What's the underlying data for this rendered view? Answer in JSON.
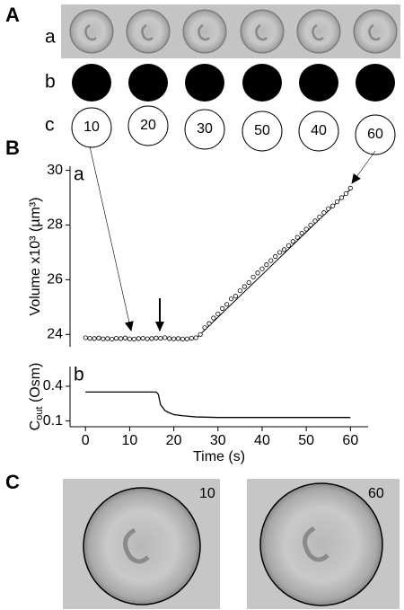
{
  "panel_a": {
    "label": "A",
    "rows": [
      "a",
      "b",
      "c"
    ],
    "times": [
      "10",
      "20",
      "30",
      "50",
      "40",
      "60"
    ]
  },
  "panel_b": {
    "label": "B"
  },
  "panel_c": {
    "label": "C",
    "images": [
      "10",
      "60"
    ]
  },
  "chart_data": [
    {
      "type": "scatter",
      "panel_label": "a",
      "ylabel": "Volume x10³ (µm³)",
      "x": [
        0,
        1,
        2,
        3,
        4,
        5,
        6,
        7,
        8,
        9,
        10,
        11,
        12,
        13,
        14,
        15,
        16,
        17,
        18,
        19,
        20,
        21,
        22,
        23,
        24,
        25,
        26,
        27,
        28,
        29,
        30,
        31,
        32,
        33,
        34,
        35,
        36,
        37,
        38,
        39,
        40,
        41,
        42,
        43,
        44,
        45,
        46,
        47,
        48,
        49,
        50,
        51,
        52,
        53,
        54,
        55,
        56,
        57,
        58,
        59,
        60
      ],
      "values": [
        23.88,
        23.86,
        23.85,
        23.87,
        23.84,
        23.85,
        23.83,
        23.86,
        23.85,
        23.87,
        23.84,
        23.83,
        23.85,
        23.86,
        23.84,
        23.85,
        23.87,
        23.86,
        23.88,
        23.85,
        23.84,
        23.85,
        23.83,
        23.84,
        23.86,
        23.88,
        24.0,
        24.25,
        24.4,
        24.6,
        24.75,
        24.95,
        25.1,
        25.3,
        25.4,
        25.6,
        25.75,
        25.9,
        26.1,
        26.25,
        26.4,
        26.55,
        26.7,
        26.85,
        27.0,
        27.1,
        27.25,
        27.4,
        27.55,
        27.7,
        27.85,
        28.0,
        28.15,
        28.3,
        28.45,
        28.6,
        28.7,
        28.85,
        29.0,
        29.15,
        29.35
      ],
      "fit": {
        "x": [
          0,
          25,
          60
        ],
        "values": [
          23.85,
          23.85,
          29.3
        ]
      },
      "xlim": [
        -3.5,
        64
      ],
      "ylim": [
        23.55,
        30.15
      ],
      "yticks": [
        24,
        26,
        28,
        30
      ],
      "color": "#000000"
    },
    {
      "type": "line",
      "panel_label": "b",
      "ylabel": {
        "base": "C",
        "sub": "out",
        "rest": " (Osm)"
      },
      "xlabel": "Time (s)",
      "x": [
        0,
        16,
        16.5,
        17,
        18,
        19,
        20,
        22,
        25,
        30,
        60
      ],
      "values": [
        0.35,
        0.35,
        0.33,
        0.24,
        0.19,
        0.17,
        0.155,
        0.145,
        0.135,
        0.13,
        0.13
      ],
      "xlim": [
        -3.5,
        64
      ],
      "ylim": [
        0.05,
        0.57
      ],
      "yticks": [
        0.1,
        0.4
      ],
      "xticks": [
        0,
        10,
        20,
        30,
        40,
        50,
        60
      ],
      "color": "#000000"
    }
  ]
}
